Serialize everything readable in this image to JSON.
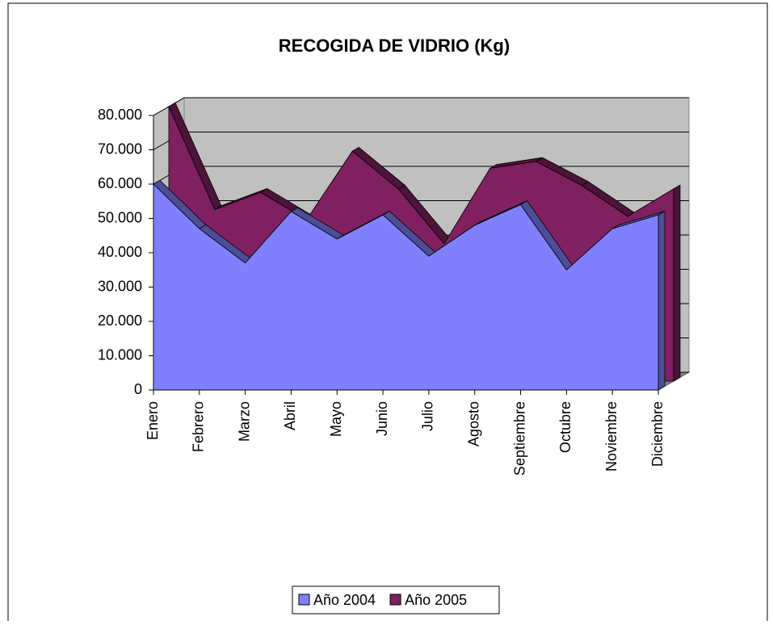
{
  "chart_data": {
    "type": "area3d",
    "title": "RECOGIDA DE VIDRIO (Kg)",
    "categories": [
      "Enero",
      "Febrero",
      "Marzo",
      "Abril",
      "Mayo",
      "Junio",
      "Julio",
      "Agosto",
      "Septiembre",
      "Octubre",
      "Noviembre",
      "Diciembre"
    ],
    "series": [
      {
        "name": "Año 2004",
        "color": "#8080ff",
        "values": [
          60000,
          47000,
          37000,
          52000,
          44000,
          51000,
          39000,
          48000,
          54000,
          35000,
          47000,
          51000
        ]
      },
      {
        "name": "Año 2005",
        "color": "#802060",
        "values": [
          80000,
          50000,
          55000,
          47000,
          67000,
          56000,
          40000,
          62000,
          64000,
          57000,
          48000,
          56000
        ]
      }
    ],
    "ylim": [
      0,
      80000
    ],
    "yticks": [
      0,
      {
        "value": 10000,
        "label": "10.000"
      },
      {
        "value": 20000,
        "label": "20.000"
      },
      {
        "value": 30000,
        "label": "30.000"
      },
      {
        "value": 40000,
        "label": "40.000"
      },
      {
        "value": 50000,
        "label": "50.000"
      },
      {
        "value": 60000,
        "label": "60.000"
      },
      {
        "value": 70000,
        "label": "70.000"
      },
      {
        "value": 80000,
        "label": "80.000"
      }
    ],
    "grid": true,
    "legend": "bottom"
  }
}
